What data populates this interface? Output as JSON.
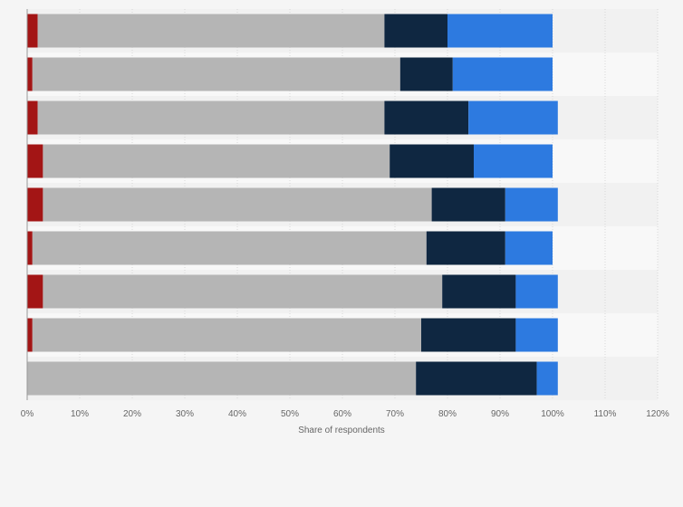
{
  "colors": {
    "background": "#f5f5f5",
    "band_dark": "#f1f1f1",
    "band_light": "#f8f8f8",
    "grid": "#d8d8d8",
    "axis": "#999999",
    "tick_text": "#666666"
  },
  "chart_data": {
    "type": "bar",
    "orientation": "horizontal",
    "stacked": true,
    "title": "",
    "xlabel": "Share of respondents",
    "ylabel": "",
    "xlim": [
      0,
      120
    ],
    "xticks": [
      "0%",
      "10%",
      "20%",
      "30%",
      "40%",
      "50%",
      "60%",
      "70%",
      "80%",
      "90%",
      "100%",
      "110%",
      "120%"
    ],
    "grid": true,
    "legend": "none",
    "categories": [
      "",
      "",
      "",
      "",
      "",
      "",
      "",
      "",
      ""
    ],
    "series": [
      {
        "color": "#a31515",
        "values": [
          2,
          1,
          2,
          3,
          3,
          1,
          3,
          1,
          0
        ]
      },
      {
        "color": "#b5b5b5",
        "values": [
          66,
          70,
          66,
          66,
          74,
          75,
          76,
          74,
          74
        ]
      },
      {
        "color": "#0f2741",
        "values": [
          12,
          10,
          16,
          16,
          14,
          15,
          14,
          18,
          23
        ]
      },
      {
        "color": "#2d7ae0",
        "values": [
          20,
          19,
          17,
          15,
          10,
          9,
          8,
          8,
          4
        ]
      }
    ]
  }
}
